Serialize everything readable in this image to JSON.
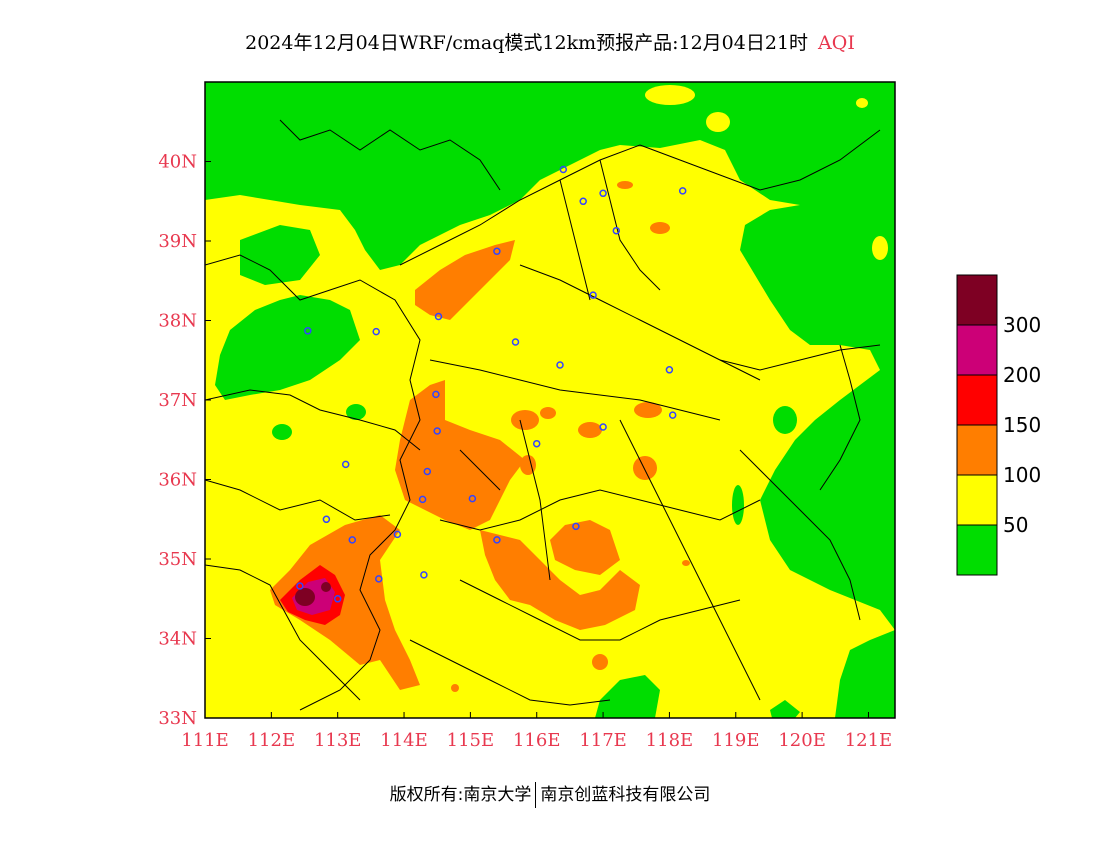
{
  "title": {
    "main": "2024年12月04日WRF/cmaq模式12km预报产品:12月04日21时",
    "variable": "AQI"
  },
  "axes": {
    "lon_ticks": [
      "111E",
      "112E",
      "113E",
      "114E",
      "115E",
      "116E",
      "117E",
      "118E",
      "119E",
      "120E",
      "121E"
    ],
    "lat_ticks": [
      "33N",
      "34N",
      "35N",
      "36N",
      "37N",
      "38N",
      "39N",
      "40N"
    ],
    "lon_range": [
      111,
      121.4
    ],
    "lat_range": [
      33,
      41
    ]
  },
  "legend": {
    "bins": [
      {
        "color": "#00dd00",
        "label": "50"
      },
      {
        "color": "#ffff00",
        "label": "100"
      },
      {
        "color": "#ff7e00",
        "label": "150"
      },
      {
        "color": "#ff0000",
        "label": "200"
      },
      {
        "color": "#cc0077",
        "label": "300"
      },
      {
        "color": "#7e0023",
        "label": ""
      }
    ]
  },
  "footer": {
    "left": "版权所有:南京大学",
    "right": "南京创蓝科技有限公司"
  },
  "colors": {
    "good": "#00dd00",
    "moderate": "#ffff00",
    "usg": "#ff7e00",
    "unhealthy": "#ff0000",
    "very_unhealthy": "#cc0077",
    "hazardous": "#7e0023",
    "tick_color": "#e8384f",
    "station_marker": "#3344ff"
  },
  "stations": [
    [
      115.4,
      38.87
    ],
    [
      114.52,
      38.05
    ],
    [
      113.58,
      37.86
    ],
    [
      112.55,
      37.87
    ],
    [
      115.68,
      37.73
    ],
    [
      116.35,
      37.44
    ],
    [
      114.48,
      37.07
    ],
    [
      114.5,
      36.61
    ],
    [
      116.0,
      36.45
    ],
    [
      114.35,
      36.1
    ],
    [
      113.12,
      36.19
    ],
    [
      112.83,
      35.5
    ],
    [
      114.28,
      35.75
    ],
    [
      115.03,
      35.76
    ],
    [
      113.9,
      35.31
    ],
    [
      113.22,
      35.24
    ],
    [
      115.4,
      35.24
    ],
    [
      116.59,
      35.41
    ],
    [
      117.0,
      36.66
    ],
    [
      118.05,
      36.81
    ],
    [
      118.0,
      37.38
    ],
    [
      113.62,
      34.75
    ],
    [
      114.3,
      34.8
    ],
    [
      112.43,
      34.66
    ],
    [
      113.0,
      34.5
    ],
    [
      116.4,
      39.9
    ],
    [
      117.2,
      39.13
    ],
    [
      117.0,
      39.6
    ],
    [
      116.7,
      39.5
    ],
    [
      118.2,
      39.63
    ],
    [
      116.85,
      38.32
    ]
  ]
}
